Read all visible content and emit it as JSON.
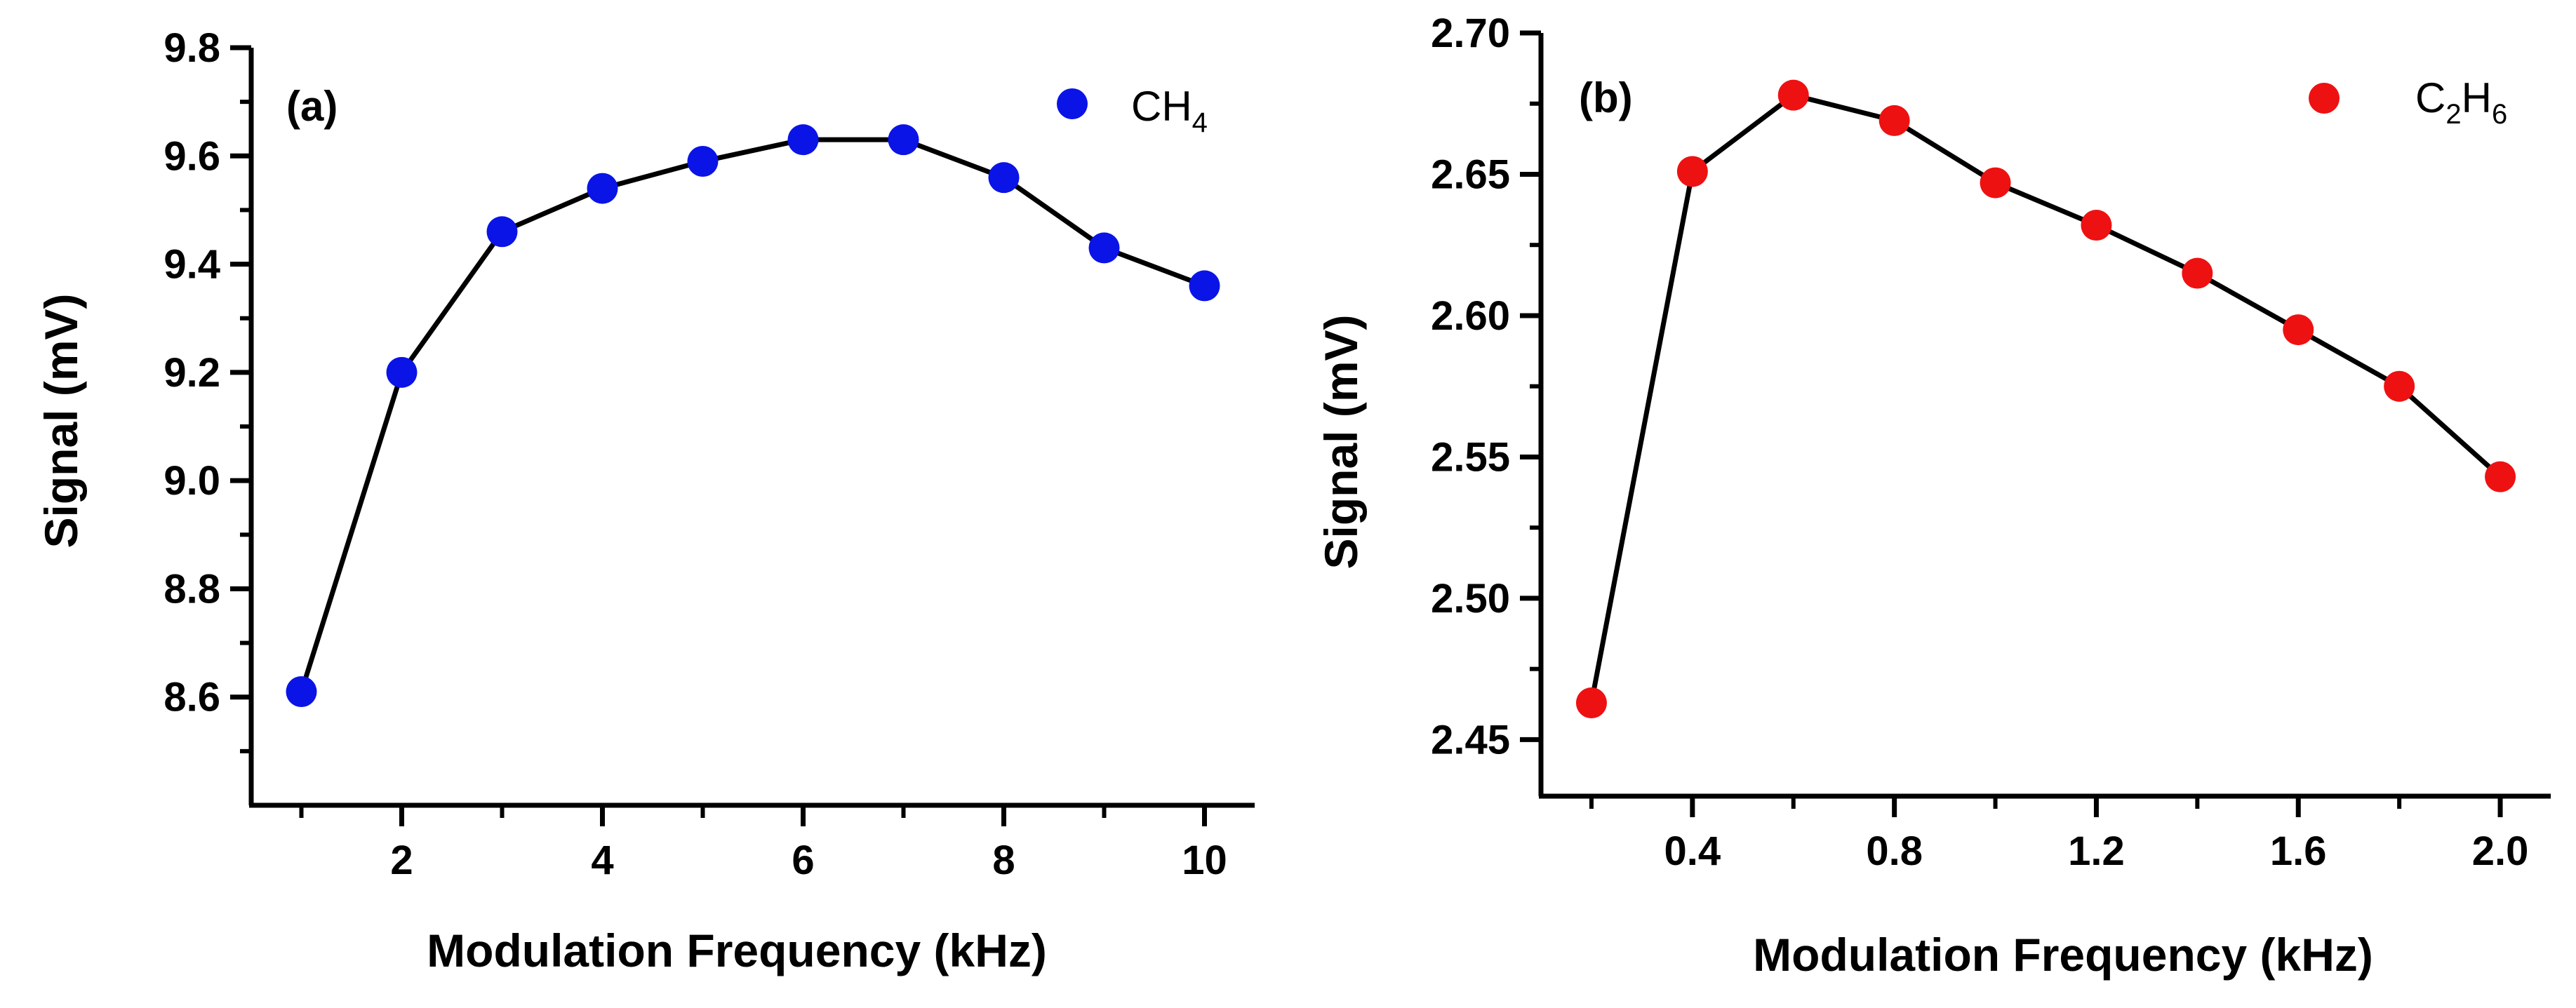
{
  "chart_data": [
    {
      "type": "line",
      "panel_label": "(a)",
      "xlabel": "Modulation Frequency (kHz)",
      "ylabel": "Signal (mV)",
      "xlim": [
        0.5,
        10.5
      ],
      "ylim": [
        8.4,
        9.8
      ],
      "x_ticks": [
        2,
        4,
        6,
        8,
        10
      ],
      "x_tick_labels": [
        "2",
        "4",
        "6",
        "8",
        "10"
      ],
      "y_ticks": [
        8.6,
        8.8,
        9.0,
        9.2,
        9.4,
        9.6,
        9.8
      ],
      "y_tick_labels": [
        "8.6",
        "8.8",
        "9.0",
        "9.2",
        "9.4",
        "9.6",
        "9.8"
      ],
      "legend": {
        "base": "CH",
        "sub": "4",
        "position": "top-right"
      },
      "marker_color": "#0a14e6",
      "series": [
        {
          "name": "CH4",
          "x": [
            1,
            2,
            3,
            4,
            5,
            6,
            7,
            8,
            9,
            10
          ],
          "y": [
            8.61,
            9.2,
            9.46,
            9.54,
            9.59,
            9.63,
            9.63,
            9.56,
            9.43,
            9.36
          ]
        }
      ]
    },
    {
      "type": "line",
      "panel_label": "(b)",
      "xlabel": "Modulation Frequency (kHz)",
      "ylabel": "Signal (mV)",
      "xlim": [
        0.1,
        2.1
      ],
      "ylim": [
        2.43,
        2.7
      ],
      "x_ticks": [
        0.4,
        0.8,
        1.2,
        1.6,
        2.0
      ],
      "x_tick_labels": [
        "0.4",
        "0.8",
        "1.2",
        "1.6",
        "2.0"
      ],
      "y_ticks": [
        2.45,
        2.5,
        2.55,
        2.6,
        2.65,
        2.7
      ],
      "y_tick_labels": [
        "2.45",
        "2.50",
        "2.55",
        "2.60",
        "2.65",
        "2.70"
      ],
      "legend": {
        "base": "C",
        "sub1": "2",
        "mid": "H",
        "sub2": "6",
        "position": "top-right"
      },
      "marker_color": "#ee1111",
      "series": [
        {
          "name": "C2H6",
          "x": [
            0.2,
            0.4,
            0.6,
            0.8,
            1.0,
            1.2,
            1.4,
            1.6,
            1.8,
            2.0
          ],
          "y": [
            2.463,
            2.651,
            2.678,
            2.669,
            2.647,
            2.632,
            2.615,
            2.595,
            2.575,
            2.543
          ]
        }
      ]
    }
  ]
}
